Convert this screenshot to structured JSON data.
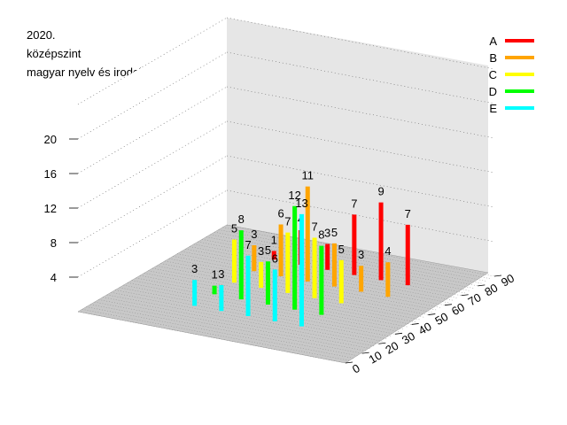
{
  "chart_data": {
    "type": "bar",
    "title_lines": [
      "2020.",
      "középszint",
      "magyar nyelv és irodalom"
    ],
    "z_ticks": [
      "4",
      "8",
      "12",
      "16",
      "20"
    ],
    "z_range": [
      0,
      24
    ],
    "y_ticks": [
      "0",
      "10",
      "20",
      "30",
      "40",
      "50",
      "60",
      "70",
      "80",
      "90"
    ],
    "legend_position": "top-right",
    "series": [
      {
        "name": "A",
        "color": "#ff0000",
        "points": [
          {
            "x": 55,
            "y": 1
          },
          {
            "x": 60,
            "y": 4
          },
          {
            "x": 65,
            "y": 3
          },
          {
            "x": 70,
            "y": 7
          },
          {
            "x": 75,
            "y": 9
          },
          {
            "x": 80,
            "y": 7
          }
        ]
      },
      {
        "name": "B",
        "color": "#ffa500",
        "points": [
          {
            "x": 55,
            "y": 3
          },
          {
            "x": 60,
            "y": 6
          },
          {
            "x": 65,
            "y": 11
          },
          {
            "x": 70,
            "y": 5
          },
          {
            "x": 75,
            "y": 3
          },
          {
            "x": 80,
            "y": 4
          }
        ]
      },
      {
        "name": "C",
        "color": "#ffff00",
        "points": [
          {
            "x": 55,
            "y": 5
          },
          {
            "x": 60,
            "y": 3
          },
          {
            "x": 65,
            "y": 7
          },
          {
            "x": 70,
            "y": 7
          },
          {
            "x": 75,
            "y": 5
          }
        ]
      },
      {
        "name": "D",
        "color": "#00ff00",
        "points": [
          {
            "x": 55,
            "y": 1
          },
          {
            "x": 60,
            "y": 8
          },
          {
            "x": 65,
            "y": 5
          },
          {
            "x": 70,
            "y": 12
          },
          {
            "x": 75,
            "y": 8
          }
        ]
      },
      {
        "name": "E",
        "color": "#00ffff",
        "points": [
          {
            "x": 55,
            "y": 3
          },
          {
            "x": 60,
            "y": 3
          },
          {
            "x": 65,
            "y": 7
          },
          {
            "x": 70,
            "y": 6
          },
          {
            "x": 75,
            "y": 13
          }
        ]
      }
    ]
  }
}
